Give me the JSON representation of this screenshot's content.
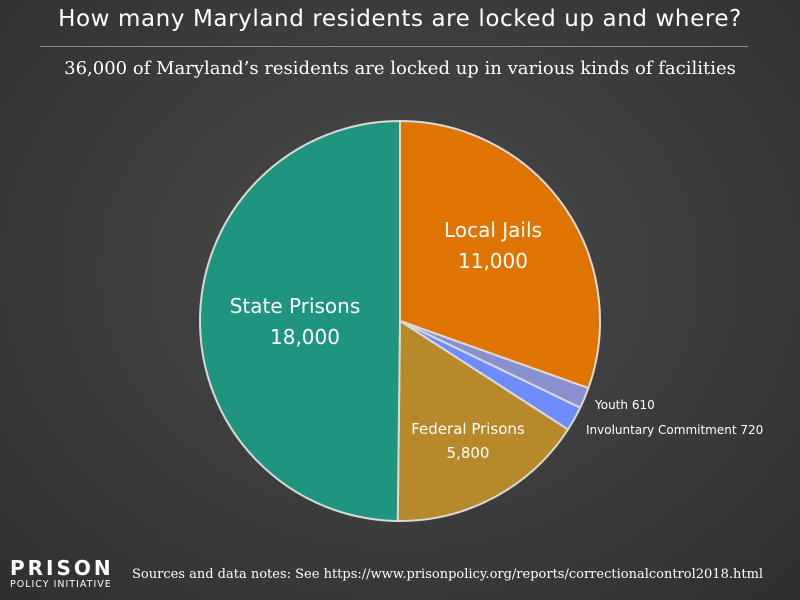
{
  "title": "How many Maryland residents are locked up and where?",
  "subtitle": "36,000 of Maryland’s residents are locked up in various kinds of facilities",
  "chart_data": {
    "type": "pie",
    "title": "How many Maryland residents are locked up and where?",
    "subtitle": "36,000 of Maryland’s residents are locked up in various kinds of facilities",
    "slices": [
      {
        "name": "Local Jails",
        "value": 11000,
        "value_label": "11,000",
        "color": "#e07400"
      },
      {
        "name": "Youth",
        "value": 610,
        "value_label": "610",
        "color": "#8a8fcf"
      },
      {
        "name": "Involuntary Commitment",
        "value": 720,
        "value_label": "720",
        "color": "#6f8cff"
      },
      {
        "name": "Federal Prisons",
        "value": 5800,
        "value_label": "5,800",
        "color": "#b8892a"
      },
      {
        "name": "State Prisons",
        "value": 18000,
        "value_label": "18,000",
        "color": "#1f9580"
      }
    ],
    "slice_border_color": "#d9d9d9"
  },
  "footer": {
    "logo_top": "PRISON",
    "logo_bottom": "POLICY INITIATIVE",
    "sources": "Sources and data notes: See https://www.prisonpolicy.org/reports/correctionalcontrol2018.html"
  }
}
